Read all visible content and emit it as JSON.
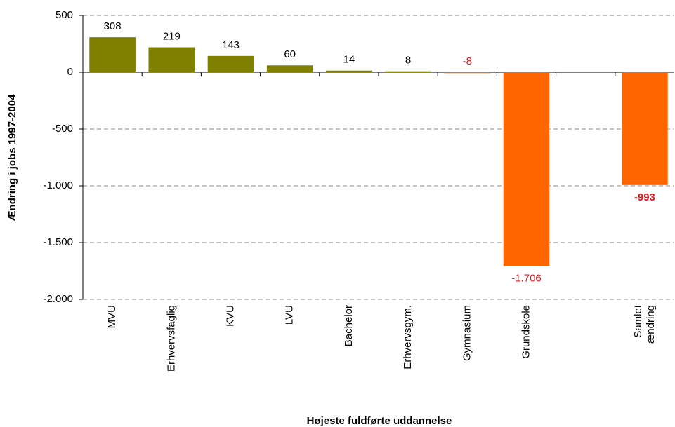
{
  "chart_data": {
    "type": "bar",
    "x_label": "Højeste fuldførte uddannelse",
    "y_label": "Ændring i jobs 1997-2004",
    "categories": [
      "MVU",
      "Erhvervsfaglig",
      "KVU",
      "LVU",
      "Bachelor",
      "Erhvervsgym.",
      "Gymnasium",
      "Grundskole",
      null,
      "Samlet ændring"
    ],
    "values": [
      308,
      219,
      143,
      60,
      14,
      8,
      -8,
      -1706,
      null,
      -993
    ],
    "value_labels": [
      "308",
      "219",
      "143",
      "60",
      "14",
      "8",
      "-8",
      "-1.706",
      null,
      "-993"
    ],
    "colors": [
      "#808000",
      "#808000",
      "#808000",
      "#808000",
      "#808000",
      "#808000",
      "#ff6600",
      "#ff6600",
      null,
      "#ff6600"
    ],
    "ylim": [
      -2000,
      500
    ],
    "yticks": [
      500,
      0,
      -500,
      {
        "value": -1000,
        "label": "-1.000"
      },
      {
        "value": -1500,
        "label": "-1.500"
      },
      {
        "value": -2000,
        "label": "-2.000"
      }
    ],
    "grid": true
  }
}
